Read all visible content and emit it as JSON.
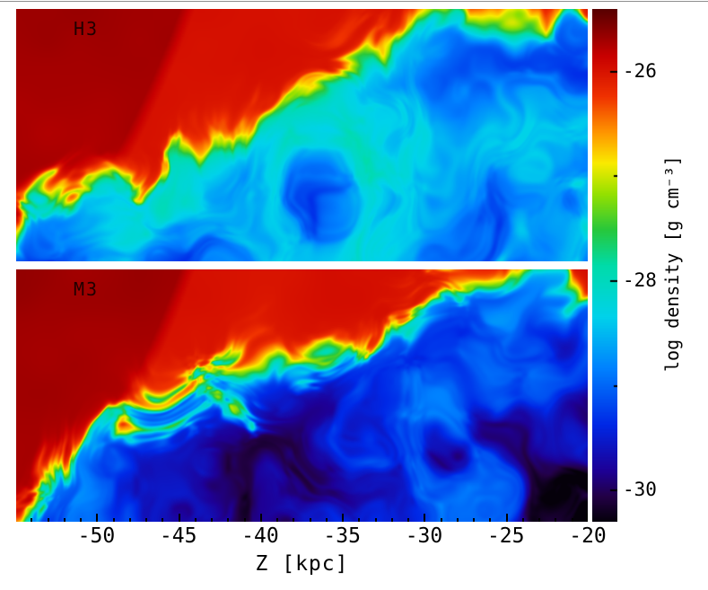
{
  "chart_data": {
    "type": "heatmap",
    "panels": [
      {
        "label": "H3"
      },
      {
        "label": "M3"
      }
    ],
    "xlabel": "Z  [kpc]",
    "x_range": [
      -54.9,
      -20
    ],
    "x_ticks": [
      -50,
      -45,
      -40,
      -35,
      -30,
      -25,
      -20
    ],
    "x_minor_tick_step": 1,
    "colorbar": {
      "label": "log density  [g cm⁻³]",
      "ticks": [
        -26,
        -28,
        -30
      ],
      "minor_ticks": [
        -27,
        -29
      ],
      "range": [
        -30.3,
        -25.4
      ],
      "colormap": "rainbow",
      "colors": {
        "high_density": "#5f0000",
        "ambient_red": "#cc0d00",
        "orange": "#ff9600",
        "yellow": "#faeb00",
        "green": "#28c83c",
        "cyan": "#00d2eb",
        "blue": "#0028dc",
        "low_density": "#05000a"
      },
      "legend_position": "right"
    },
    "grid": false
  }
}
